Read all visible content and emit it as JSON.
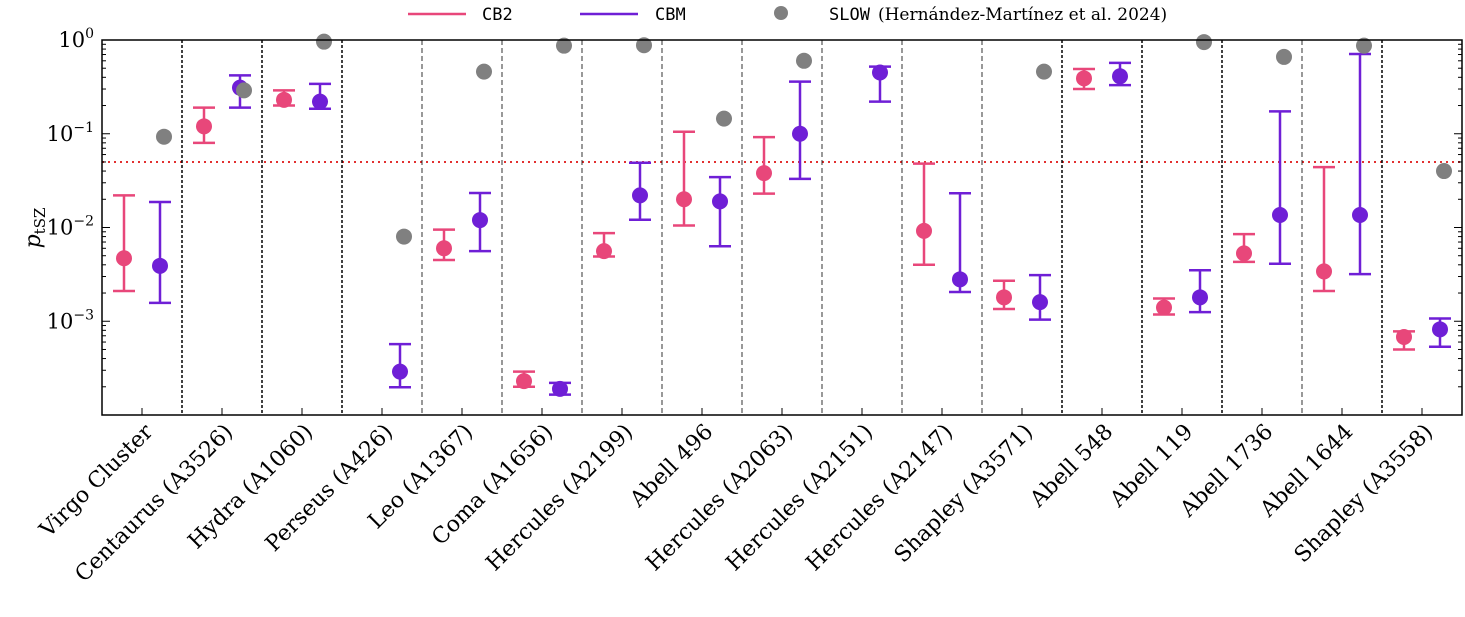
{
  "chart_data": {
    "type": "scatter",
    "ylabel": "p_tSZ",
    "yscale": "log",
    "ylim": [
      0.0001,
      1
    ],
    "ytick_labels": [
      {
        "value": 1,
        "base": "10",
        "exp": "0"
      },
      {
        "value": 0.1,
        "base": "10",
        "exp": "−1"
      },
      {
        "value": 0.01,
        "base": "10",
        "exp": "−2"
      },
      {
        "value": 0.001,
        "base": "10",
        "exp": "−3"
      }
    ],
    "threshold": 0.05,
    "categories": [
      "Virgo Cluster",
      "Centaurus (A3526)",
      "Hydra (A1060)",
      "Perseus (A426)",
      "Leo (A1367)",
      "Coma (A1656)",
      "Hercules (A2199)",
      "Abell 496",
      "Hercules (A2063)",
      "Hercules (A2151)",
      "Hercules (A2147)",
      "Shapley (A3571)",
      "Abell 548",
      "Abell 119",
      "Abell 1736",
      "Abell 1644",
      "Shapley (A3558)"
    ],
    "separator_styles": [
      "heavy",
      "heavy",
      "heavy",
      "light",
      "light",
      "light",
      "light",
      "light",
      "light",
      "light",
      "light",
      "heavy",
      "heavy",
      "heavy",
      "light",
      "heavy"
    ],
    "legend": {
      "cb2": "CB2",
      "cbm": "CBM",
      "slow": "SLOW",
      "slow_ref": "(Hernández-Martínez et al. 2024)"
    },
    "series": [
      {
        "name": "CB2",
        "color": "#e8477a",
        "values": [
          0.0047,
          0.12,
          0.23,
          null,
          0.006,
          0.00023,
          0.0056,
          0.02,
          0.038,
          null,
          0.0092,
          0.0018,
          0.39,
          0.0014,
          0.0053,
          0.0034,
          0.00068
        ],
        "lower": [
          0.0021,
          0.08,
          0.2,
          null,
          0.0045,
          0.0002,
          0.0049,
          0.0105,
          0.023,
          null,
          0.004,
          0.00135,
          0.3,
          0.00118,
          0.0043,
          0.0021,
          0.0005
        ],
        "upper": [
          0.022,
          0.19,
          0.29,
          null,
          0.0095,
          0.00029,
          0.0087,
          0.105,
          0.092,
          null,
          0.048,
          0.0027,
          0.49,
          0.00175,
          0.0085,
          0.044,
          0.00078
        ]
      },
      {
        "name": "CBM",
        "color": "#6f1fd6",
        "values": [
          0.0039,
          0.31,
          0.22,
          0.00029,
          0.012,
          0.00019,
          0.022,
          0.019,
          0.1,
          0.45,
          0.0028,
          0.0016,
          0.41,
          0.0018,
          0.0136,
          0.0136,
          0.00082
        ],
        "lower": [
          0.00157,
          0.19,
          0.185,
          0.000198,
          0.0056,
          0.000165,
          0.0121,
          0.0063,
          0.033,
          0.22,
          0.00205,
          0.00104,
          0.33,
          0.00125,
          0.0041,
          0.00318,
          0.000535
        ],
        "upper": [
          0.0187,
          0.42,
          0.34,
          0.00057,
          0.0233,
          0.00022,
          0.049,
          0.0345,
          0.36,
          0.52,
          0.0232,
          0.0031,
          0.57,
          0.0035,
          0.173,
          0.71,
          0.00107
        ]
      },
      {
        "name": "SLOW",
        "color": "#808080",
        "values": [
          0.093,
          0.29,
          0.96,
          0.008,
          0.46,
          0.87,
          0.88,
          0.145,
          0.6,
          null,
          null,
          0.46,
          null,
          0.95,
          0.66,
          0.87,
          0.04
        ]
      }
    ]
  }
}
